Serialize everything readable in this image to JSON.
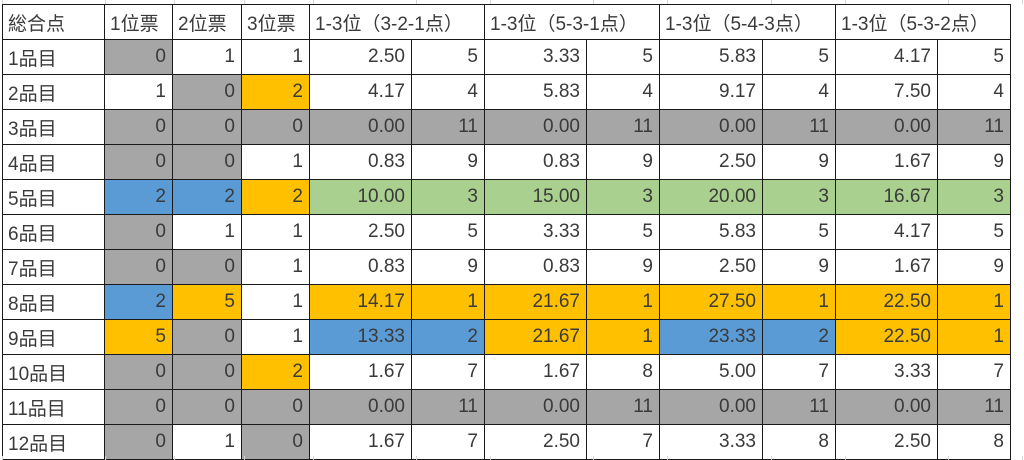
{
  "colors": {
    "gray": "#a6a6a6",
    "blue": "#5b9bd5",
    "orange": "#ffc000",
    "green": "#a9d08e",
    "white": "#ffffff"
  },
  "table": {
    "header": [
      "総合点",
      "1位票",
      "2位票",
      "3位票",
      "1-3位（3-2-1点）",
      "1-3位（5-3-1点）",
      "1-3位（5-4-3点）",
      "1-3位（5-3-2点）"
    ],
    "rows": [
      {
        "label": "1品目",
        "values": [
          "0",
          "1",
          "1",
          "2.50",
          "5",
          "3.33",
          "5",
          "5.83",
          "5",
          "4.17",
          "5"
        ],
        "bg": [
          "gray",
          "white",
          "white",
          "white",
          "white",
          "white",
          "white",
          "white",
          "white",
          "white",
          "white"
        ]
      },
      {
        "label": "2品目",
        "values": [
          "1",
          "0",
          "2",
          "4.17",
          "4",
          "5.83",
          "4",
          "9.17",
          "4",
          "7.50",
          "4"
        ],
        "bg": [
          "white",
          "gray",
          "orange",
          "white",
          "white",
          "white",
          "white",
          "white",
          "white",
          "white",
          "white"
        ]
      },
      {
        "label": "3品目",
        "values": [
          "0",
          "0",
          "0",
          "0.00",
          "11",
          "0.00",
          "11",
          "0.00",
          "11",
          "0.00",
          "11"
        ],
        "bg": [
          "gray",
          "gray",
          "gray",
          "gray",
          "gray",
          "gray",
          "gray",
          "gray",
          "gray",
          "gray",
          "gray"
        ]
      },
      {
        "label": "4品目",
        "values": [
          "0",
          "0",
          "1",
          "0.83",
          "9",
          "0.83",
          "9",
          "2.50",
          "9",
          "1.67",
          "9"
        ],
        "bg": [
          "gray",
          "gray",
          "white",
          "white",
          "white",
          "white",
          "white",
          "white",
          "white",
          "white",
          "white"
        ]
      },
      {
        "label": "5品目",
        "values": [
          "2",
          "2",
          "2",
          "10.00",
          "3",
          "15.00",
          "3",
          "20.00",
          "3",
          "16.67",
          "3"
        ],
        "bg": [
          "blue",
          "blue",
          "orange",
          "green",
          "green",
          "green",
          "green",
          "green",
          "green",
          "green",
          "green"
        ]
      },
      {
        "label": "6品目",
        "values": [
          "0",
          "1",
          "1",
          "2.50",
          "5",
          "3.33",
          "5",
          "5.83",
          "5",
          "4.17",
          "5"
        ],
        "bg": [
          "gray",
          "white",
          "white",
          "white",
          "white",
          "white",
          "white",
          "white",
          "white",
          "white",
          "white"
        ]
      },
      {
        "label": "7品目",
        "values": [
          "0",
          "0",
          "1",
          "0.83",
          "9",
          "0.83",
          "9",
          "2.50",
          "9",
          "1.67",
          "9"
        ],
        "bg": [
          "gray",
          "gray",
          "white",
          "white",
          "white",
          "white",
          "white",
          "white",
          "white",
          "white",
          "white"
        ]
      },
      {
        "label": "8品目",
        "values": [
          "2",
          "5",
          "1",
          "14.17",
          "1",
          "21.67",
          "1",
          "27.50",
          "1",
          "22.50",
          "1"
        ],
        "bg": [
          "blue",
          "orange",
          "white",
          "orange",
          "orange",
          "orange",
          "orange",
          "orange",
          "orange",
          "orange",
          "orange"
        ]
      },
      {
        "label": "9品目",
        "values": [
          "5",
          "0",
          "1",
          "13.33",
          "2",
          "21.67",
          "1",
          "23.33",
          "2",
          "22.50",
          "1"
        ],
        "bg": [
          "orange",
          "gray",
          "white",
          "blue",
          "blue",
          "orange",
          "orange",
          "blue",
          "blue",
          "orange",
          "orange"
        ]
      },
      {
        "label": "10品目",
        "values": [
          "0",
          "0",
          "2",
          "1.67",
          "7",
          "1.67",
          "8",
          "5.00",
          "7",
          "3.33",
          "7"
        ],
        "bg": [
          "gray",
          "gray",
          "orange",
          "white",
          "white",
          "white",
          "white",
          "white",
          "white",
          "white",
          "white"
        ]
      },
      {
        "label": "11品目",
        "values": [
          "0",
          "0",
          "0",
          "0.00",
          "11",
          "0.00",
          "11",
          "0.00",
          "11",
          "0.00",
          "11"
        ],
        "bg": [
          "gray",
          "gray",
          "gray",
          "gray",
          "gray",
          "gray",
          "gray",
          "gray",
          "gray",
          "gray",
          "gray"
        ]
      },
      {
        "label": "12品目",
        "values": [
          "0",
          "1",
          "0",
          "1.67",
          "7",
          "2.50",
          "7",
          "3.33",
          "8",
          "2.50",
          "8"
        ],
        "bg": [
          "gray",
          "white",
          "gray",
          "white",
          "white",
          "white",
          "white",
          "white",
          "white",
          "white",
          "white"
        ]
      }
    ]
  }
}
